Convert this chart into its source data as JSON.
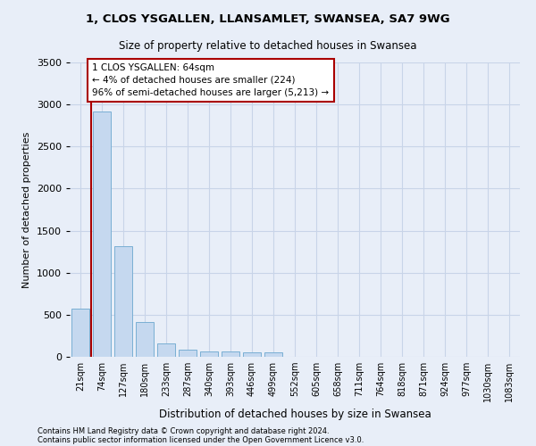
{
  "title_line1": "1, CLOS YSGALLEN, LLANSAMLET, SWANSEA, SA7 9WG",
  "title_line2": "Size of property relative to detached houses in Swansea",
  "xlabel": "Distribution of detached houses by size in Swansea",
  "ylabel": "Number of detached properties",
  "footer_line1": "Contains HM Land Registry data © Crown copyright and database right 2024.",
  "footer_line2": "Contains public sector information licensed under the Open Government Licence v3.0.",
  "categories": [
    "21sqm",
    "74sqm",
    "127sqm",
    "180sqm",
    "233sqm",
    "287sqm",
    "340sqm",
    "393sqm",
    "446sqm",
    "499sqm",
    "552sqm",
    "605sqm",
    "658sqm",
    "711sqm",
    "764sqm",
    "818sqm",
    "871sqm",
    "924sqm",
    "977sqm",
    "1030sqm",
    "1083sqm"
  ],
  "values": [
    570,
    2920,
    1320,
    410,
    160,
    85,
    65,
    60,
    55,
    50,
    0,
    0,
    0,
    0,
    0,
    0,
    0,
    0,
    0,
    0,
    0
  ],
  "bar_color": "#c5d8ef",
  "bar_edge_color": "#7aafd4",
  "vline_color": "#aa0000",
  "vline_x": 0.5,
  "annotation_text": "1 CLOS YSGALLEN: 64sqm\n← 4% of detached houses are smaller (224)\n96% of semi-detached houses are larger (5,213) →",
  "annotation_box_facecolor": "#ffffff",
  "annotation_box_edgecolor": "#aa0000",
  "ylim": [
    0,
    3500
  ],
  "yticks": [
    0,
    500,
    1000,
    1500,
    2000,
    2500,
    3000,
    3500
  ],
  "grid_color": "#c8d4e8",
  "background_color": "#e8eef8",
  "plot_bg_color": "#e8eef8"
}
